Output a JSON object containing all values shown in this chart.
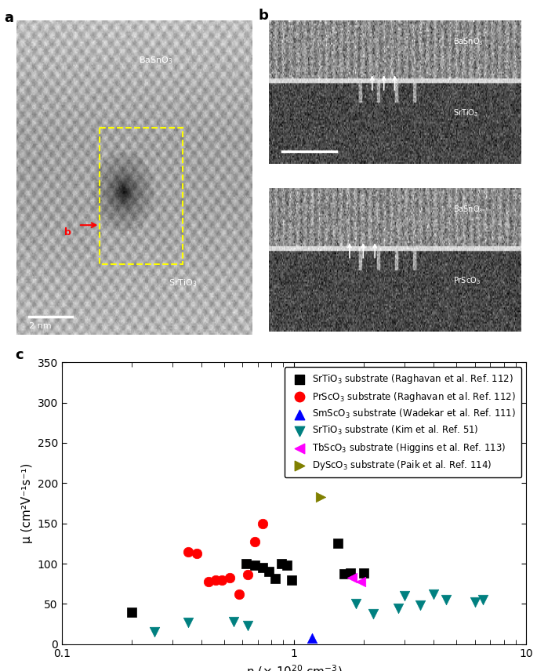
{
  "panel_c": {
    "xlabel": "n (× 10$^{20}$ cm$^{-3}$)",
    "ylabel": "μ (cm²V⁻¹s⁻¹)",
    "xlim": [
      0.1,
      10
    ],
    "ylim": [
      0,
      350
    ],
    "yticks": [
      0,
      50,
      100,
      150,
      200,
      250,
      300,
      350
    ],
    "series": [
      {
        "label": "SrTiO$_3$ substrate (Raghavan et al. Ref. 112)",
        "color": "#000000",
        "marker": "s",
        "markersize": 8,
        "x": [
          0.2,
          0.62,
          0.68,
          0.73,
          0.78,
          0.83,
          0.88,
          0.93,
          0.98,
          1.55,
          1.65,
          1.75,
          2.0
        ],
        "y": [
          40,
          100,
          98,
          95,
          90,
          82,
          100,
          98,
          80,
          125,
          87,
          88,
          88
        ]
      },
      {
        "label": "PrScO$_3$ substrate (Raghavan et al. Ref. 112)",
        "color": "#ff0000",
        "marker": "o",
        "markersize": 9,
        "x": [
          0.35,
          0.38,
          0.43,
          0.46,
          0.49,
          0.53,
          0.58,
          0.63,
          0.68,
          0.73
        ],
        "y": [
          115,
          113,
          78,
          80,
          80,
          83,
          62,
          86,
          127,
          150
        ]
      },
      {
        "label": "SmScO$_3$ substrate (Wadekar et al. Ref. 111)",
        "color": "#0000ff",
        "marker": "^",
        "markersize": 9,
        "x": [
          1.2
        ],
        "y": [
          8
        ]
      },
      {
        "label": "SrTiO$_3$ substrate (Kim et al. Ref. 51)",
        "color": "#008080",
        "marker": "v",
        "markersize": 9,
        "x": [
          0.25,
          0.35,
          0.55,
          0.63,
          1.85,
          2.2,
          2.8,
          3.0,
          3.5,
          4.0,
          4.5,
          6.0,
          6.5
        ],
        "y": [
          15,
          27,
          28,
          23,
          50,
          38,
          45,
          60,
          48,
          62,
          55,
          52,
          55
        ]
      },
      {
        "label": "TbScO$_3$ substrate (Higgins et al. Ref. 113)",
        "color": "#ff00ff",
        "marker": "<",
        "markersize": 9,
        "x": [
          1.78,
          1.93
        ],
        "y": [
          83,
          78
        ]
      },
      {
        "label": "DyScO$_3$ substrate (Paik et al. Ref. 114)",
        "color": "#808000",
        "marker": ">",
        "markersize": 9,
        "x": [
          1.3
        ],
        "y": [
          183
        ]
      }
    ]
  }
}
